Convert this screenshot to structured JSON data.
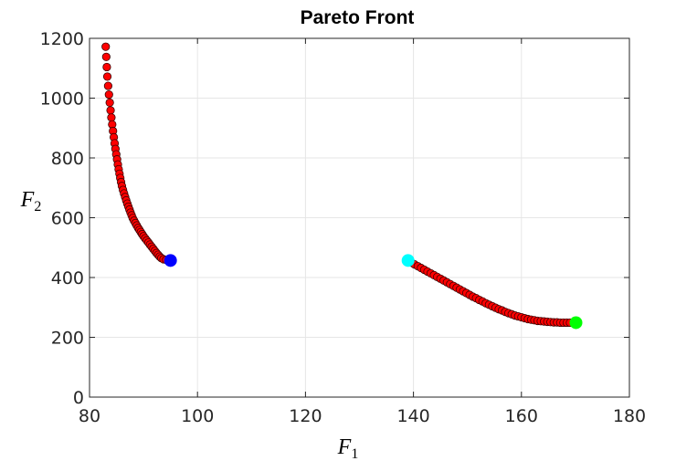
{
  "chart_data": {
    "type": "scatter",
    "title": "Pareto Front",
    "xlabel": {
      "symbol": "F",
      "subscript": "1"
    },
    "ylabel": {
      "symbol": "F",
      "subscript": "2"
    },
    "xlim": [
      80,
      180
    ],
    "ylim": [
      0,
      1200
    ],
    "xticks": [
      80,
      100,
      120,
      140,
      160,
      180
    ],
    "yticks": [
      0,
      200,
      400,
      600,
      800,
      1000,
      1200
    ],
    "grid": true,
    "series": [
      {
        "color": "#ff0000",
        "points": [
          [
            83.0,
            1172
          ],
          [
            83.1,
            1138
          ],
          [
            83.2,
            1104
          ],
          [
            83.3,
            1072
          ],
          [
            83.45,
            1041
          ],
          [
            83.6,
            1012
          ],
          [
            83.75,
            985
          ],
          [
            83.9,
            959
          ],
          [
            84.05,
            935
          ],
          [
            84.2,
            912
          ],
          [
            84.35,
            890
          ],
          [
            84.5,
            869
          ],
          [
            84.65,
            849
          ],
          [
            84.8,
            830
          ],
          [
            84.95,
            812
          ],
          [
            85.1,
            795
          ],
          [
            85.25,
            778
          ],
          [
            85.4,
            762
          ],
          [
            85.55,
            747
          ],
          [
            85.7,
            733
          ],
          [
            85.85,
            719
          ],
          [
            86.0,
            706
          ],
          [
            86.2,
            693
          ],
          [
            86.4,
            681
          ],
          [
            86.6,
            669
          ],
          [
            86.8,
            658
          ],
          [
            87.0,
            647
          ],
          [
            87.2,
            637
          ],
          [
            87.4,
            627
          ],
          [
            87.6,
            617
          ],
          [
            87.8,
            608
          ],
          [
            88.0,
            599
          ],
          [
            88.25,
            590
          ],
          [
            88.5,
            582
          ],
          [
            88.75,
            574
          ],
          [
            89.0,
            566
          ],
          [
            89.25,
            559
          ],
          [
            89.5,
            552
          ],
          [
            89.75,
            545
          ],
          [
            90.0,
            538
          ],
          [
            90.3,
            531
          ],
          [
            90.6,
            524
          ],
          [
            90.9,
            517
          ],
          [
            91.2,
            510
          ],
          [
            91.5,
            503
          ],
          [
            91.8,
            496
          ],
          [
            92.1,
            489
          ],
          [
            92.4,
            482
          ],
          [
            92.7,
            476
          ],
          [
            93.0,
            470
          ],
          [
            93.3,
            465
          ],
          [
            93.7,
            461
          ],
          [
            94.2,
            459
          ],
          [
            94.7,
            458
          ]
        ]
      },
      {
        "color": "#ff0000",
        "points": [
          [
            139.0,
            456
          ],
          [
            139.6,
            450
          ],
          [
            140.2,
            444
          ],
          [
            140.8,
            438
          ],
          [
            141.4,
            432
          ],
          [
            142.0,
            426
          ],
          [
            142.6,
            420
          ],
          [
            143.2,
            414
          ],
          [
            143.8,
            408
          ],
          [
            144.4,
            402
          ],
          [
            145.0,
            396
          ],
          [
            145.6,
            390
          ],
          [
            146.2,
            384
          ],
          [
            146.8,
            378
          ],
          [
            147.4,
            372
          ],
          [
            148.0,
            366
          ],
          [
            148.6,
            360
          ],
          [
            149.2,
            354
          ],
          [
            149.8,
            348
          ],
          [
            150.4,
            342
          ],
          [
            151.0,
            336
          ],
          [
            151.6,
            331
          ],
          [
            152.2,
            325
          ],
          [
            152.8,
            320
          ],
          [
            153.4,
            314
          ],
          [
            154.0,
            309
          ],
          [
            154.6,
            304
          ],
          [
            155.2,
            299
          ],
          [
            155.8,
            294
          ],
          [
            156.4,
            290
          ],
          [
            157.0,
            285
          ],
          [
            157.6,
            281
          ],
          [
            158.2,
            277
          ],
          [
            158.8,
            273
          ],
          [
            159.4,
            270
          ],
          [
            160.0,
            267
          ],
          [
            160.6,
            264
          ],
          [
            161.2,
            261
          ],
          [
            161.8,
            259
          ],
          [
            162.4,
            257
          ],
          [
            163.0,
            255
          ],
          [
            163.6,
            254
          ],
          [
            164.2,
            253
          ],
          [
            164.8,
            252
          ],
          [
            165.4,
            251
          ],
          [
            166.0,
            250
          ],
          [
            166.6,
            250
          ],
          [
            167.2,
            249
          ],
          [
            167.8,
            249
          ],
          [
            168.4,
            249
          ],
          [
            169.0,
            249
          ]
        ]
      }
    ],
    "highlight_points": [
      {
        "x": 95.0,
        "y": 457,
        "color": "#0000ff"
      },
      {
        "x": 139.0,
        "y": 457,
        "color": "#00ffff"
      },
      {
        "x": 170.1,
        "y": 249,
        "color": "#00ff00"
      }
    ]
  }
}
